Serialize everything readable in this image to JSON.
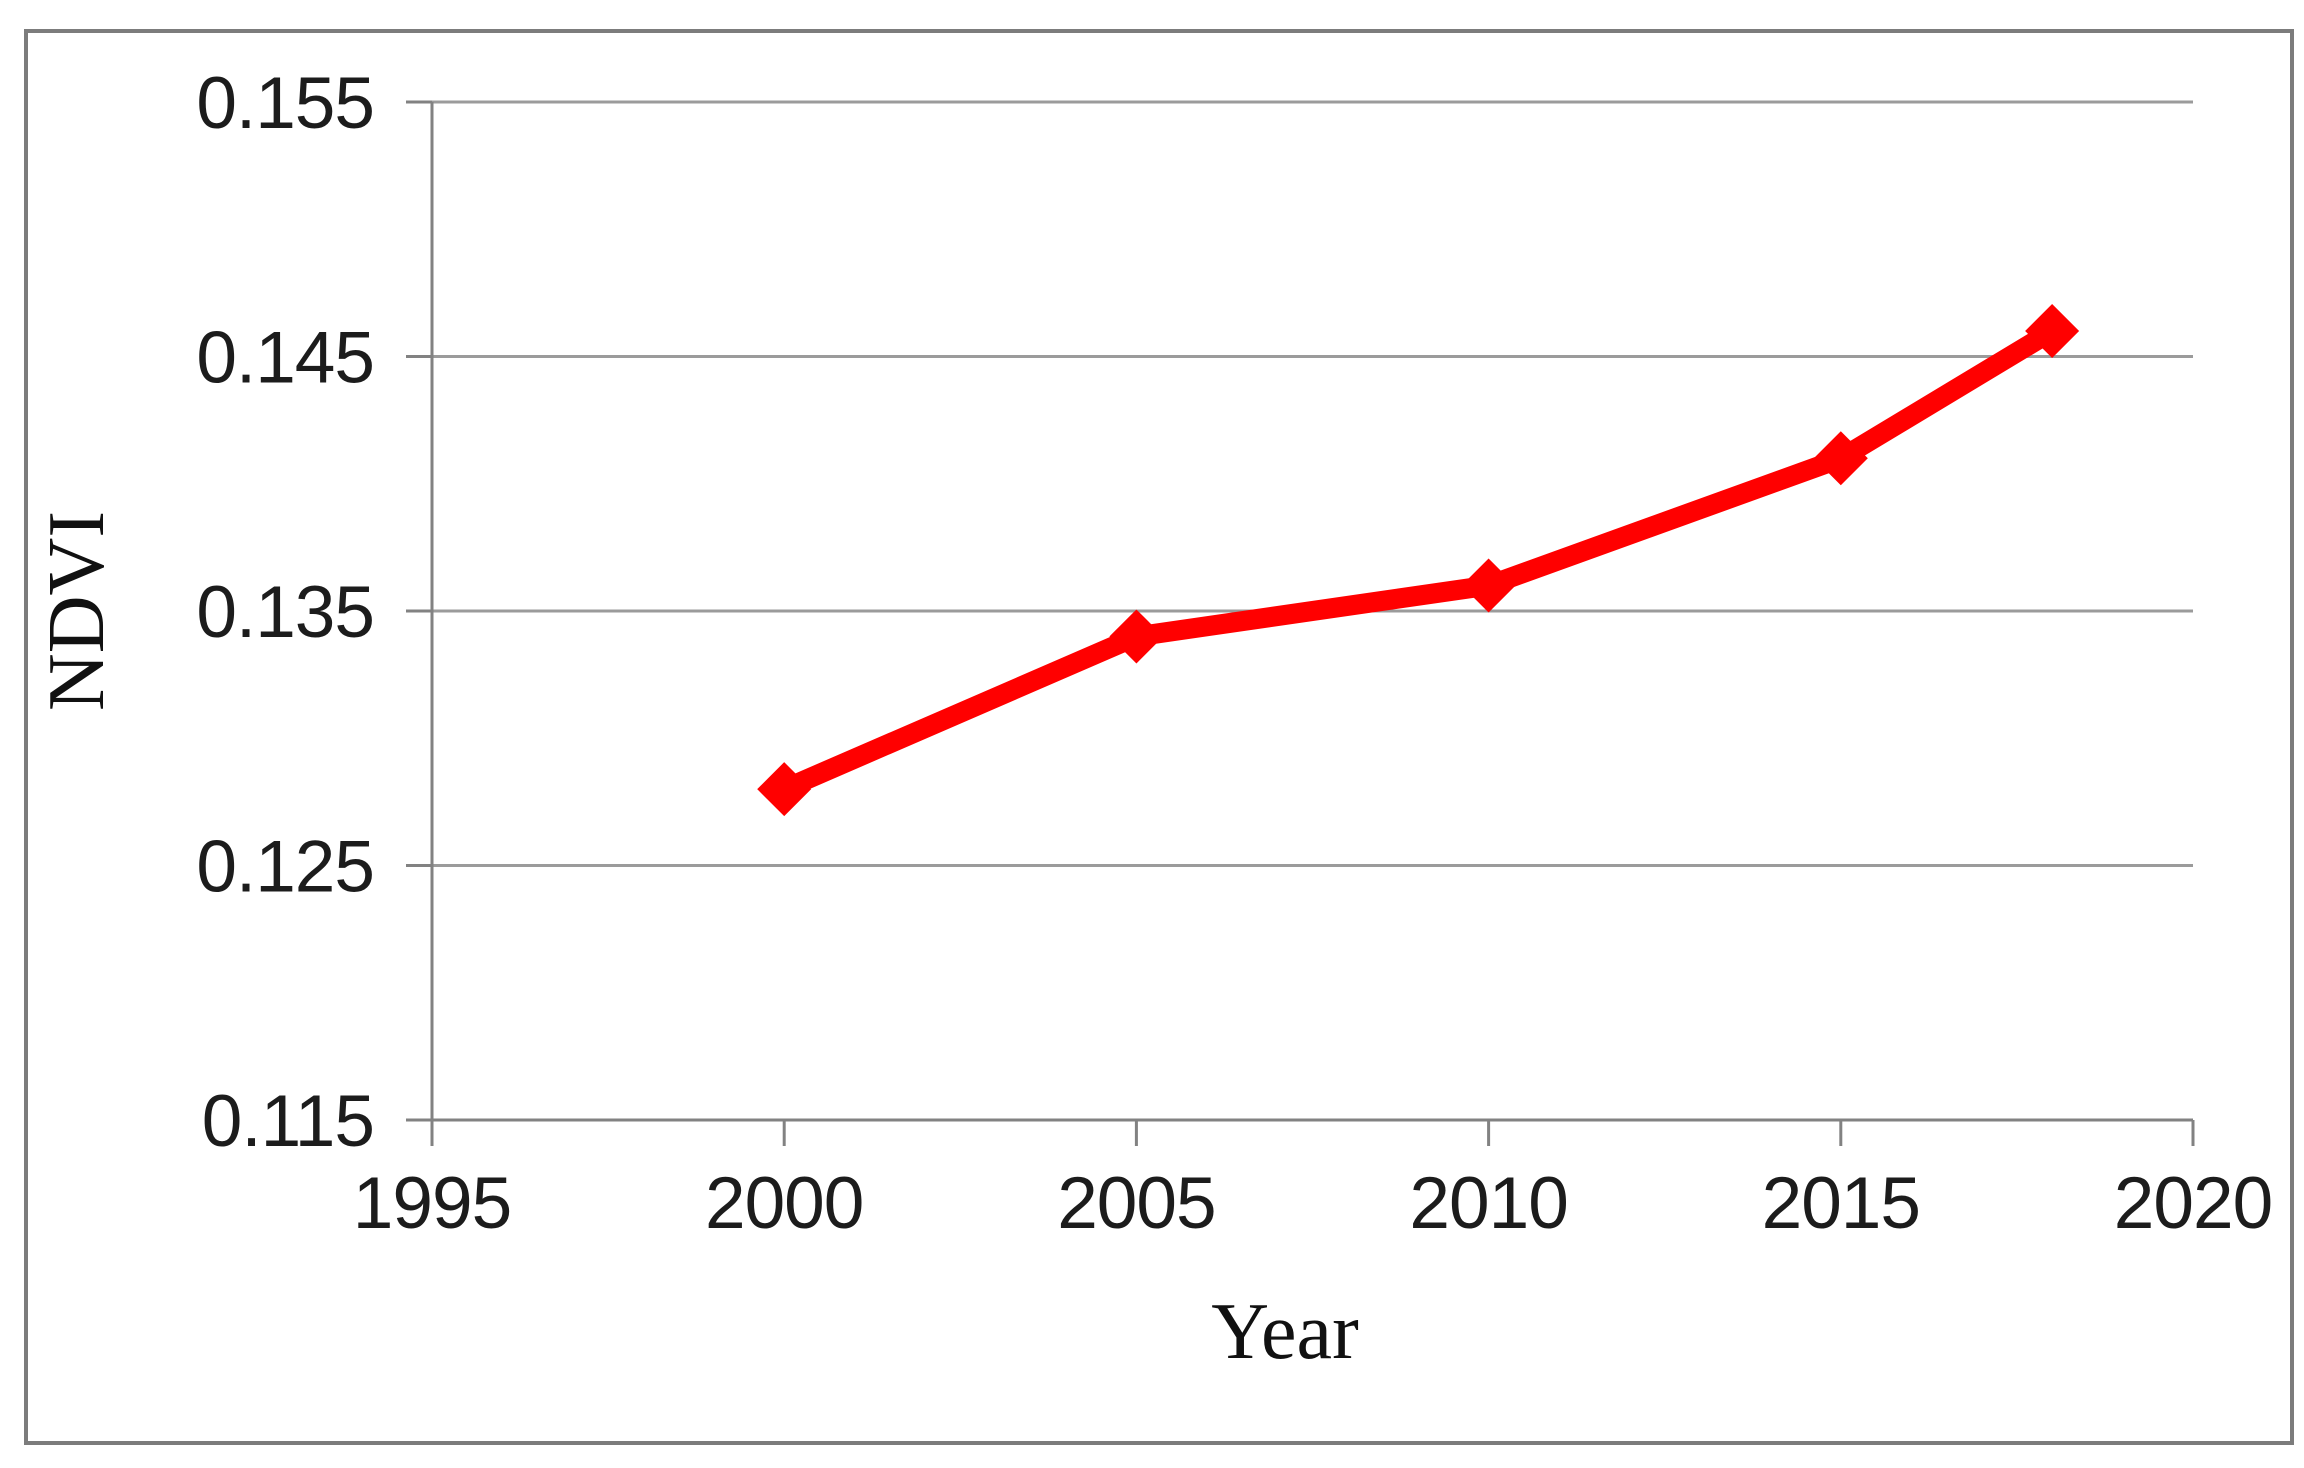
{
  "figure": {
    "background_color": "#ffffff",
    "border_color": "#7c7c7c",
    "axis_line_color": "#828282",
    "gridline_color": "#9b9b9b",
    "tick_text_color": "#1c1c1c",
    "series_color": "#ff0000"
  },
  "chart_data": {
    "type": "line",
    "title": "",
    "xlabel": "Year",
    "ylabel": "NDVI",
    "x": [
      2000,
      2005,
      2010,
      2015,
      2018
    ],
    "series": [
      {
        "name": "NDVI",
        "color": "#ff0000",
        "marker": "diamond",
        "values": [
          0.128,
          0.134,
          0.136,
          0.141,
          0.146
        ]
      }
    ],
    "xlim": [
      1995,
      2020
    ],
    "ylim": [
      0.115,
      0.155
    ],
    "xticks": [
      1995,
      2000,
      2005,
      2010,
      2015,
      2020
    ],
    "yticks": [
      0.115,
      0.125,
      0.135,
      0.145,
      0.155
    ],
    "ytick_decimals": 3,
    "grid": "horizontal",
    "legend_position": "none"
  }
}
